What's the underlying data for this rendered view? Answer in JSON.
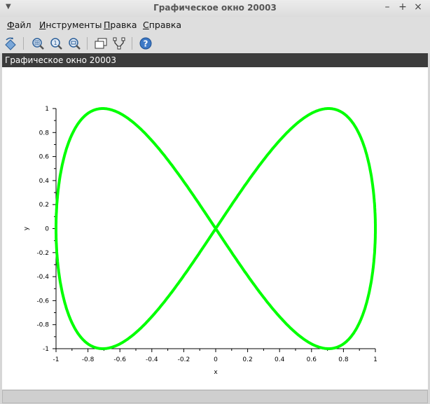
{
  "window": {
    "title": "Графическое окно 20003"
  },
  "menu": {
    "items": [
      {
        "label": "Файл",
        "accel": "Ф",
        "rest": "айл"
      },
      {
        "label": "Инструменты",
        "accel": "И",
        "rest": "нструменты"
      },
      {
        "label": "Правка",
        "accel": "П",
        "rest": "равка"
      },
      {
        "label": "Справка",
        "accel": "С",
        "rest": "правка"
      }
    ]
  },
  "toolbar": {
    "icons": [
      "rotate-icon",
      "grid-zoom-icon",
      "zoom-in-icon",
      "zoom-out-icon",
      "figure-icon",
      "datatip-icon",
      "help-icon"
    ]
  },
  "canvas": {
    "header": "Графическое окно 20003"
  },
  "chart_data": {
    "type": "line",
    "xlabel": "x",
    "ylabel": "y",
    "xlim": [
      -1,
      1
    ],
    "ylim": [
      -1,
      1
    ],
    "xticks": [
      "-1",
      "-0.8",
      "-0.6",
      "-0.4",
      "-0.2",
      "0",
      "0.2",
      "0.4",
      "0.6",
      "0.8",
      "1"
    ],
    "yticks": [
      "-1",
      "-0.8",
      "-0.6",
      "-0.4",
      "-0.2",
      "0",
      "0.2",
      "0.4",
      "0.6",
      "0.8",
      "1"
    ],
    "series": [
      {
        "equation": "x = sin(t), y = sin(2t)",
        "color": "#00ff00"
      }
    ],
    "grid": false
  }
}
